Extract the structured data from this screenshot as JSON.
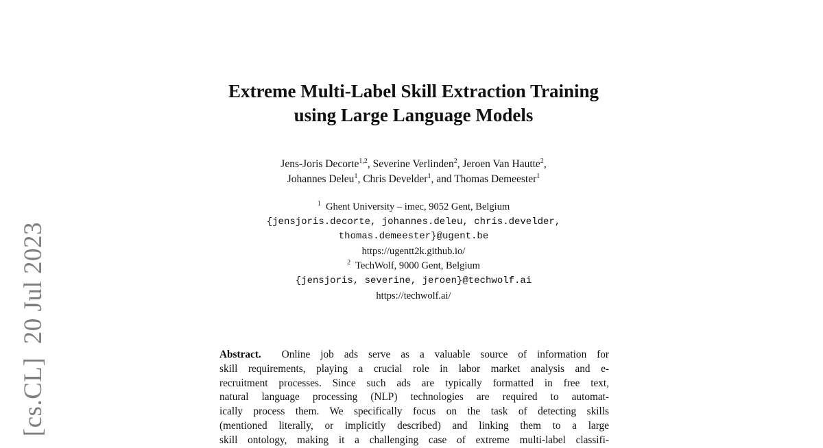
{
  "sidebar": {
    "arxiv_stamp": "[cs.CL]  20 Jul 2023"
  },
  "title": {
    "line1": "Extreme Multi-Label Skill Extraction Training",
    "line2": "using Large Language Models"
  },
  "authors": [
    {
      "name": "Jens-Joris Decorte",
      "aff": "1,2",
      "sep": ", "
    },
    {
      "name": "Severine Verlinden",
      "aff": "2",
      "sep": ", "
    },
    {
      "name": "Jeroen Van Hautte",
      "aff": "2",
      "sep": ","
    },
    {
      "name": "Johannes Deleu",
      "aff": "1",
      "sep": ", "
    },
    {
      "name": "Chris Develder",
      "aff": "1",
      "sep": ", and "
    },
    {
      "name": "Thomas Demeester",
      "aff": "1",
      "sep": ""
    }
  ],
  "affiliations": {
    "a1_num": "1",
    "a1_name": "Ghent University – imec, 9052 Gent, Belgium",
    "a1_email1": "{jensjoris.decorte, johannes.deleu, chris.develder,",
    "a1_email2": "thomas.demeester}@ugent.be",
    "a1_url": "https://ugentt2k.github.io/",
    "a2_num": "2",
    "a2_name": "TechWolf, 9000 Gent, Belgium",
    "a2_email": "{jensjoris, severine, jeroen}@techwolf.ai",
    "a2_url": "https://techwolf.ai/"
  },
  "abstract": {
    "heading": "Abstract.",
    "lines": [
      "Online job ads serve as a valuable source of information for",
      "skill requirements, playing a crucial role in labor market analysis and e-",
      "recruitment processes. Since such ads are typically formatted in free text,",
      "natural language processing (NLP) technologies are required to automat-",
      "ically process them. We specifically focus on the task of detecting skills",
      "(mentioned literally, or implicitly described) and linking them to a large",
      "skill ontology, making it a challenging case of extreme multi-label classifi-"
    ]
  }
}
